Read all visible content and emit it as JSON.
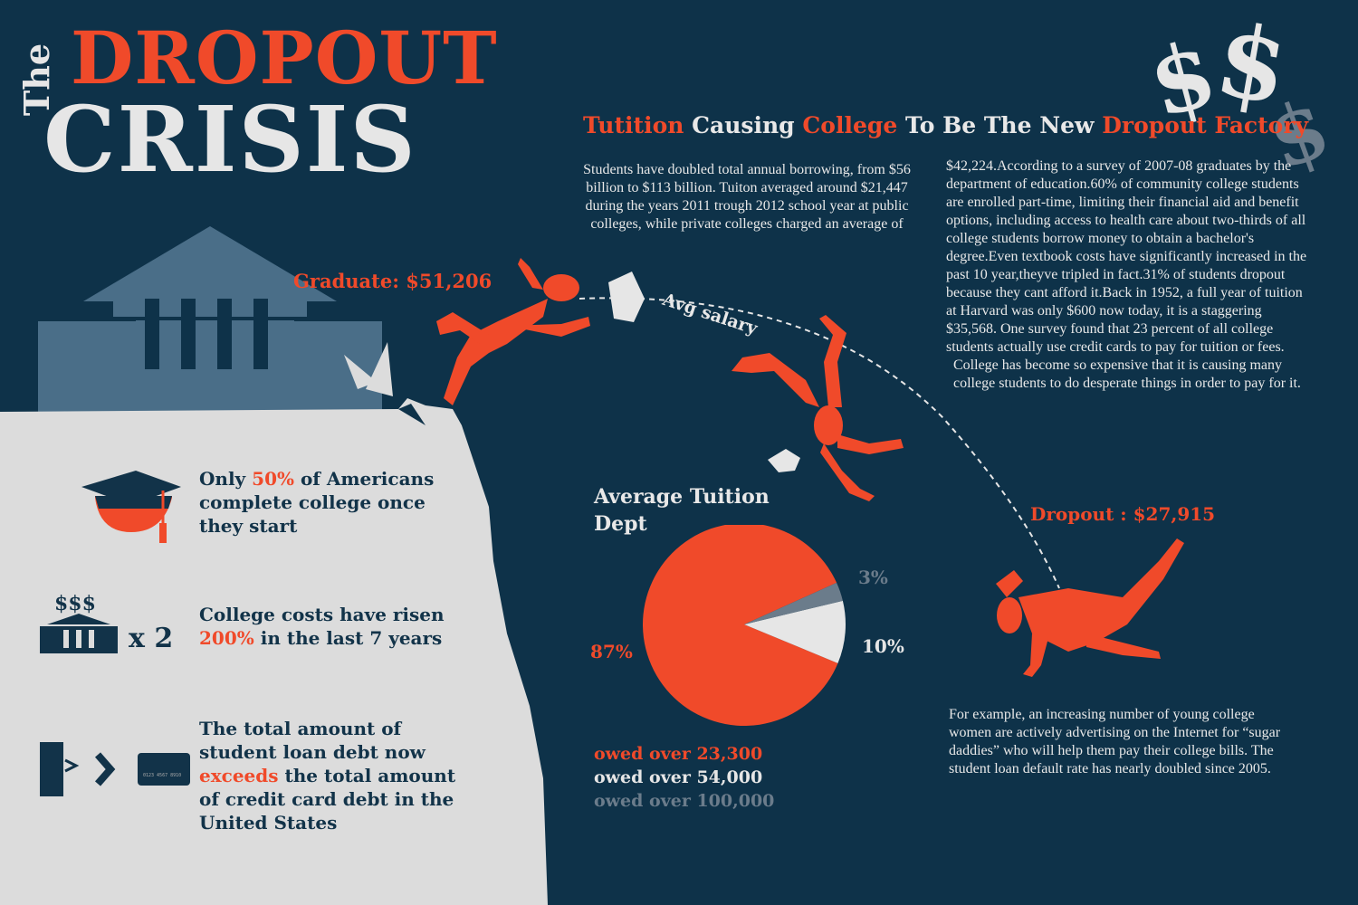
{
  "title": {
    "the": "The",
    "dropout": "DROPOUT",
    "crisis": "CRISIS"
  },
  "headline": {
    "w1": "Tutition",
    "w2": "Causing",
    "w3": "College",
    "w4": "To Be The New",
    "w5": "Dropout Factory"
  },
  "paragraphs": {
    "left": "Students have doubled total annual borrowing, from $56 billion to $113 billion. Tuiton averaged around $21,447 during the years 2011 trough 2012 school year at public colleges, while private colleges charged an average of",
    "right_1": "$42,224.According to a survey of 2007-08 graduates by the department of education.60% of community college students are enrolled part-time, limiting their financial aid and benefit options, including access to health care about two-thirds of all college students borrow money to obtain a bachelor's degree.Even textbook costs have significantly increased in the past 10 year,theyve tripled in fact.31% of students dropout because they cant afford it.Back in 1952, a full year of tuition at Harvard was only $600 now today, it is a staggering $35,568. One survey found that 23 percent of all college students actually use credit cards to pay for tuition or fees.",
    "right_2": "College has become so expensive that it is causing many college students to do desperate things in order to pay for it.",
    "bottom": "For example, an increasing number of young college women are actively advertising on the Internet for “sugar daddies” who will help them pay their college bills. The student loan default rate has nearly doubled since 2005."
  },
  "labels": {
    "graduate": "Graduate: $51,206",
    "avg_salary": "Avg salary",
    "dropout": "Dropout : $27,915"
  },
  "stats": {
    "s1_a": "Only ",
    "s1_b": "50%",
    "s1_c": " of Americans complete college once they start",
    "s2_icon": "$$$",
    "s2_mult": "x 2",
    "s2_a": "College costs have risen ",
    "s2_b": "200%",
    "s2_c": " in the last  7 years",
    "s3_a": "The total amount of student loan debt now ",
    "s3_b": "exceeds",
    "s3_c": " the total amount of credit card debt in the United States",
    "card_number": "0123 4567 8910"
  },
  "chart_data": {
    "type": "pie",
    "title": "Average Tuition Dept",
    "slices": [
      {
        "label": "87%",
        "value": 87,
        "color": "#f04a2a",
        "legend": "owed over 23,300"
      },
      {
        "label": "10%",
        "value": 10,
        "color": "#e6e6e6",
        "legend": "owed over 54,000"
      },
      {
        "label": "3%",
        "value": 3,
        "color": "#6b7c8b",
        "legend": "owed over 100,000"
      }
    ]
  },
  "colors": {
    "background": "#0e3249",
    "accent": "#f04a2a",
    "light": "#e6e6e6",
    "muted": "#6b7c8b",
    "cliff": "#dcdcdc"
  },
  "icons": [
    "dollar-signs-icon",
    "building-icon",
    "grad-cap-icon",
    "bank-icon",
    "scroll-icon",
    "credit-card-icon"
  ]
}
